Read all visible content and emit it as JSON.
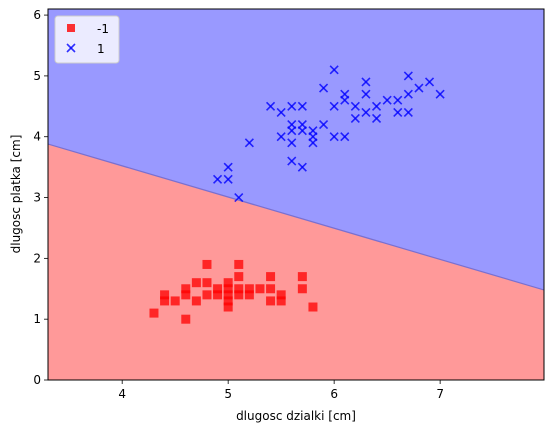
{
  "chart_data": {
    "type": "scatter",
    "title": "",
    "xlabel": "dlugosc dzialki [cm]",
    "ylabel": "dlugosc platka [cm]",
    "xlim": [
      3.3,
      7.98
    ],
    "ylim": [
      0,
      6.1
    ],
    "xticks": [
      4,
      5,
      6,
      7
    ],
    "yticks": [
      0,
      1,
      2,
      3,
      4,
      5,
      6
    ],
    "grid": false,
    "legend_position": "top-left",
    "decision_boundary": {
      "points": [
        [
          3.3,
          3.88
        ],
        [
          7.98,
          1.48
        ]
      ],
      "region_below_color": "#ff9999",
      "region_above_color": "#9999ff",
      "region_below_class": "-1",
      "region_above_class": "1"
    },
    "series": [
      {
        "name": "-1",
        "marker": "square",
        "color": "#ff0000",
        "points": [
          [
            4.3,
            1.1
          ],
          [
            4.4,
            1.3
          ],
          [
            4.4,
            1.4
          ],
          [
            4.5,
            1.3
          ],
          [
            4.6,
            1.0
          ],
          [
            4.6,
            1.4
          ],
          [
            4.6,
            1.5
          ],
          [
            4.7,
            1.3
          ],
          [
            4.7,
            1.6
          ],
          [
            4.8,
            1.4
          ],
          [
            4.8,
            1.6
          ],
          [
            4.8,
            1.9
          ],
          [
            4.9,
            1.4
          ],
          [
            4.9,
            1.5
          ],
          [
            5.0,
            1.2
          ],
          [
            5.0,
            1.3
          ],
          [
            5.0,
            1.4
          ],
          [
            5.0,
            1.5
          ],
          [
            5.0,
            1.6
          ],
          [
            5.1,
            1.4
          ],
          [
            5.1,
            1.5
          ],
          [
            5.1,
            1.7
          ],
          [
            5.1,
            1.9
          ],
          [
            5.2,
            1.4
          ],
          [
            5.2,
            1.5
          ],
          [
            5.3,
            1.5
          ],
          [
            5.4,
            1.3
          ],
          [
            5.4,
            1.5
          ],
          [
            5.4,
            1.7
          ],
          [
            5.5,
            1.3
          ],
          [
            5.5,
            1.4
          ],
          [
            5.7,
            1.5
          ],
          [
            5.7,
            1.7
          ],
          [
            5.8,
            1.2
          ]
        ]
      },
      {
        "name": "1",
        "marker": "x",
        "color": "#0000ff",
        "points": [
          [
            4.9,
            3.3
          ],
          [
            5.0,
            3.3
          ],
          [
            5.0,
            3.5
          ],
          [
            5.1,
            3.0
          ],
          [
            5.2,
            3.9
          ],
          [
            5.4,
            4.5
          ],
          [
            5.5,
            4.0
          ],
          [
            5.5,
            4.4
          ],
          [
            5.6,
            3.6
          ],
          [
            5.6,
            3.9
          ],
          [
            5.6,
            4.1
          ],
          [
            5.6,
            4.2
          ],
          [
            5.6,
            4.5
          ],
          [
            5.7,
            3.5
          ],
          [
            5.7,
            4.1
          ],
          [
            5.7,
            4.2
          ],
          [
            5.7,
            4.5
          ],
          [
            5.8,
            3.9
          ],
          [
            5.8,
            4.0
          ],
          [
            5.8,
            4.1
          ],
          [
            5.9,
            4.2
          ],
          [
            5.9,
            4.8
          ],
          [
            6.0,
            4.0
          ],
          [
            6.0,
            4.5
          ],
          [
            6.0,
            5.1
          ],
          [
            6.1,
            4.0
          ],
          [
            6.1,
            4.6
          ],
          [
            6.1,
            4.7
          ],
          [
            6.2,
            4.3
          ],
          [
            6.2,
            4.5
          ],
          [
            6.3,
            4.4
          ],
          [
            6.3,
            4.7
          ],
          [
            6.3,
            4.9
          ],
          [
            6.4,
            4.3
          ],
          [
            6.4,
            4.5
          ],
          [
            6.5,
            4.6
          ],
          [
            6.6,
            4.4
          ],
          [
            6.6,
            4.6
          ],
          [
            6.7,
            4.4
          ],
          [
            6.7,
            4.7
          ],
          [
            6.7,
            5.0
          ],
          [
            6.8,
            4.8
          ],
          [
            6.9,
            4.9
          ],
          [
            7.0,
            4.7
          ]
        ]
      }
    ]
  }
}
